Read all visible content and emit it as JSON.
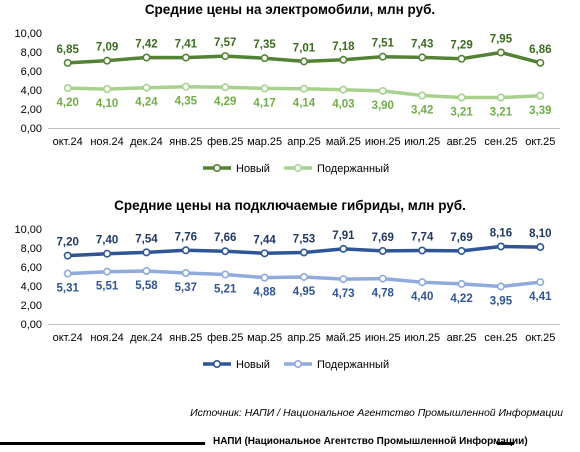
{
  "chart_data": [
    {
      "type": "line",
      "title": "Средние цены на электромобили, млн руб.",
      "categories": [
        "окт.24",
        "ноя.24",
        "дек.24",
        "янв.25",
        "фев.25",
        "мар.25",
        "апр.25",
        "май.25",
        "июн.25",
        "июл.25",
        "авг.25",
        "сен.25",
        "окт.25"
      ],
      "series": [
        {
          "name": "Новый",
          "color": "#548235",
          "label_color": "#3b6b1f",
          "values": [
            6.85,
            7.09,
            7.42,
            7.41,
            7.57,
            7.35,
            7.01,
            7.18,
            7.51,
            7.43,
            7.29,
            7.95,
            6.86
          ],
          "labels": [
            "6,85",
            "7,09",
            "7,42",
            "7,41",
            "7,57",
            "7,35",
            "7,01",
            "7,18",
            "7,51",
            "7,43",
            "7,29",
            "7,95",
            "6,86"
          ]
        },
        {
          "name": "Подержанный",
          "color": "#a9d18e",
          "label_color": "#70ad47",
          "values": [
            4.2,
            4.1,
            4.24,
            4.35,
            4.29,
            4.17,
            4.14,
            4.03,
            3.9,
            3.42,
            3.21,
            3.21,
            3.39
          ],
          "labels": [
            "4,20",
            "4,10",
            "4,24",
            "4,35",
            "4,29",
            "4,17",
            "4,14",
            "4,03",
            "3,90",
            "3,42",
            "3,21",
            "3,21",
            "3,39"
          ]
        }
      ],
      "ylim": [
        0,
        10
      ],
      "yticks": [
        "0,00",
        "2,00",
        "4,00",
        "6,00",
        "8,00",
        "10,00"
      ],
      "grid": false,
      "legend": "bottom"
    },
    {
      "type": "line",
      "title": "Средние цены на подключаемые гибриды, млн руб.",
      "categories": [
        "окт.24",
        "ноя.24",
        "дек.24",
        "янв.25",
        "фев.25",
        "мар.25",
        "апр.25",
        "май.25",
        "июн.25",
        "июл.25",
        "авг.25",
        "сен.25",
        "окт.25"
      ],
      "series": [
        {
          "name": "Новый",
          "color": "#2f5597",
          "label_color": "#203864",
          "values": [
            7.2,
            7.4,
            7.54,
            7.76,
            7.66,
            7.44,
            7.53,
            7.91,
            7.69,
            7.74,
            7.69,
            8.16,
            8.1
          ],
          "labels": [
            "7,20",
            "7,40",
            "7,54",
            "7,76",
            "7,66",
            "7,44",
            "7,53",
            "7,91",
            "7,69",
            "7,74",
            "7,69",
            "8,16",
            "8,10"
          ]
        },
        {
          "name": "Подержанный",
          "color": "#8faadc",
          "label_color": "#2f5597",
          "values": [
            5.31,
            5.51,
            5.58,
            5.37,
            5.21,
            4.88,
            4.95,
            4.73,
            4.78,
            4.4,
            4.22,
            3.95,
            4.41
          ],
          "labels": [
            "5,31",
            "5,51",
            "5,58",
            "5,37",
            "5,21",
            "4,88",
            "4,95",
            "4,73",
            "4,78",
            "4,40",
            "4,22",
            "3,95",
            "4,41"
          ]
        }
      ],
      "ylim": [
        0,
        10
      ],
      "yticks": [
        "0,00",
        "2,00",
        "4,00",
        "6,00",
        "8,00",
        "10,00"
      ],
      "grid": false,
      "legend": "bottom"
    }
  ],
  "source": "Источник: НАПИ / Национальное Агентство Промышленной Информации",
  "footer": "НАПИ (Национальное Агентство Промышленной Информации)"
}
